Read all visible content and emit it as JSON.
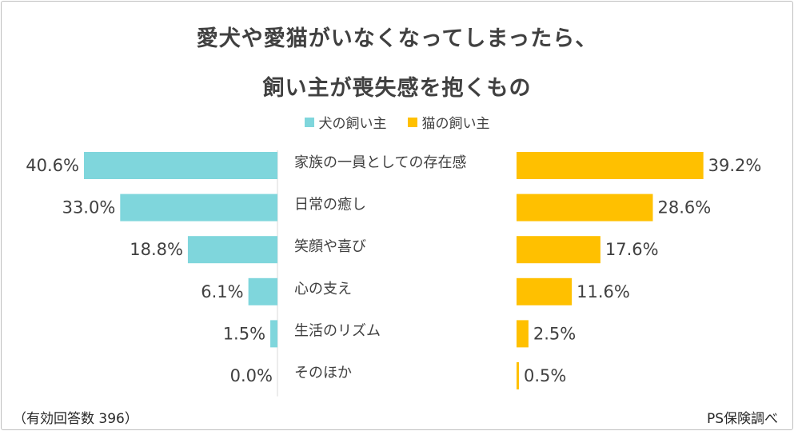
{
  "title_line1": "愛犬や愛猫がいなくなってしまったら、",
  "title_line2": "飼い主が喪失感を抱くもの",
  "legend": [
    {
      "label": "犬の飼い主",
      "color": "#7fd6dc"
    },
    {
      "label": "猫の飼い主",
      "color": "#ffc000"
    }
  ],
  "note": "（有効回答数 396）",
  "source": "PS保険調べ",
  "chart_data": {
    "type": "bar",
    "orientation": "horizontal-butterfly",
    "title": "愛犬や愛猫がいなくなってしまったら、飼い主が喪失感を抱くもの",
    "categories": [
      "家族の一員としての存在感",
      "日常の癒し",
      "笑顔や喜び",
      "心の支え",
      "生活のリズム",
      "そのほか"
    ],
    "series": [
      {
        "name": "犬の飼い主",
        "color": "#7fd6dc",
        "values": [
          40.6,
          33.0,
          18.8,
          6.1,
          1.5,
          0.0
        ],
        "labels": [
          "40.6%",
          "33.0%",
          "18.8%",
          "6.1%",
          "1.5%",
          "0.0%"
        ]
      },
      {
        "name": "猫の飼い主",
        "color": "#ffc000",
        "values": [
          39.2,
          28.6,
          17.6,
          11.6,
          2.5,
          0.5
        ],
        "labels": [
          "39.2%",
          "28.6%",
          "17.6%",
          "11.6%",
          "2.5%",
          "0.5%"
        ]
      }
    ],
    "xlabel": "",
    "ylabel": "",
    "xlim": [
      0,
      40.6
    ]
  }
}
